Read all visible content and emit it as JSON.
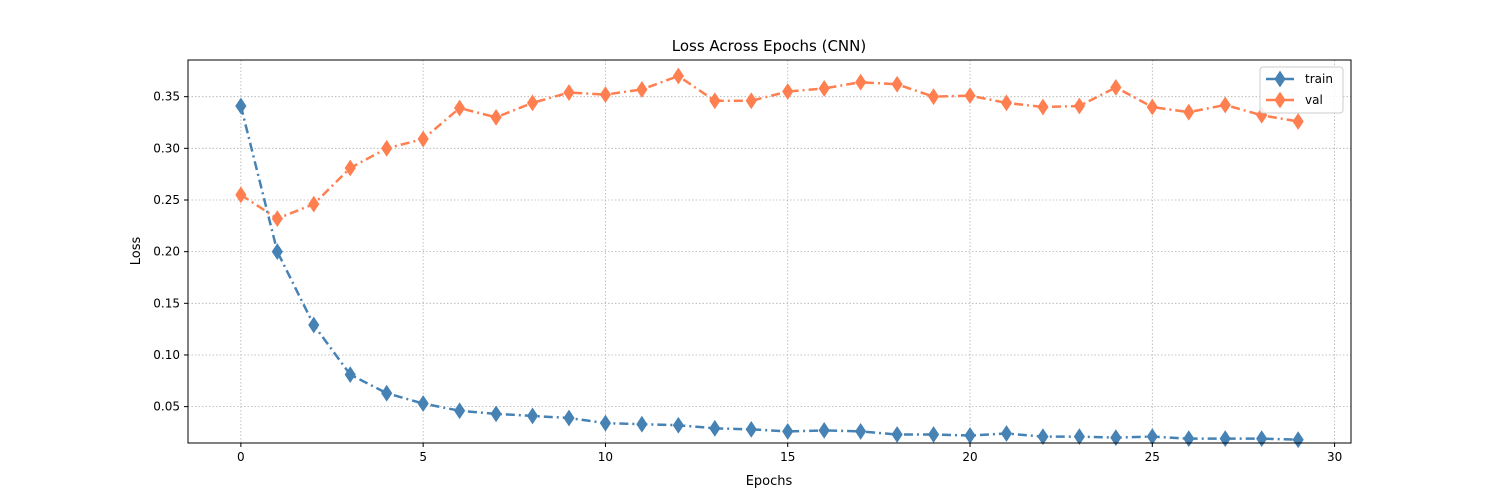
{
  "chart_data": {
    "type": "line",
    "title": "Loss Across Epochs (CNN)",
    "xlabel": "Epochs",
    "ylabel": "Loss",
    "xlim": [
      -1.45,
      30.45
    ],
    "ylim": [
      0.0148,
      0.3855
    ],
    "xticks": [
      0,
      5,
      10,
      15,
      20,
      25,
      30
    ],
    "yticks": [
      0.05,
      0.1,
      0.15,
      0.2,
      0.25,
      0.3,
      0.35
    ],
    "ytick_labels": [
      "0.05",
      "0.10",
      "0.15",
      "0.20",
      "0.25",
      "0.30",
      "0.35"
    ],
    "grid": true,
    "legend_position": "top-right",
    "x": [
      0,
      1,
      2,
      3,
      4,
      5,
      6,
      7,
      8,
      9,
      10,
      11,
      12,
      13,
      14,
      15,
      16,
      17,
      18,
      19,
      20,
      21,
      22,
      23,
      24,
      25,
      26,
      27,
      28,
      29
    ],
    "series": [
      {
        "name": "train",
        "color": "#4682b4",
        "values": [
          0.341,
          0.2,
          0.129,
          0.081,
          0.063,
          0.053,
          0.046,
          0.043,
          0.041,
          0.039,
          0.034,
          0.033,
          0.032,
          0.029,
          0.028,
          0.026,
          0.027,
          0.026,
          0.023,
          0.023,
          0.022,
          0.024,
          0.021,
          0.021,
          0.02,
          0.021,
          0.019,
          0.019,
          0.019,
          0.018
        ]
      },
      {
        "name": "val",
        "color": "#ff7f50",
        "values": [
          0.255,
          0.232,
          0.246,
          0.281,
          0.3,
          0.309,
          0.339,
          0.33,
          0.344,
          0.354,
          0.352,
          0.357,
          0.37,
          0.346,
          0.346,
          0.355,
          0.358,
          0.364,
          0.362,
          0.35,
          0.351,
          0.344,
          0.34,
          0.341,
          0.359,
          0.34,
          0.335,
          0.342,
          0.332,
          0.326
        ]
      }
    ]
  }
}
